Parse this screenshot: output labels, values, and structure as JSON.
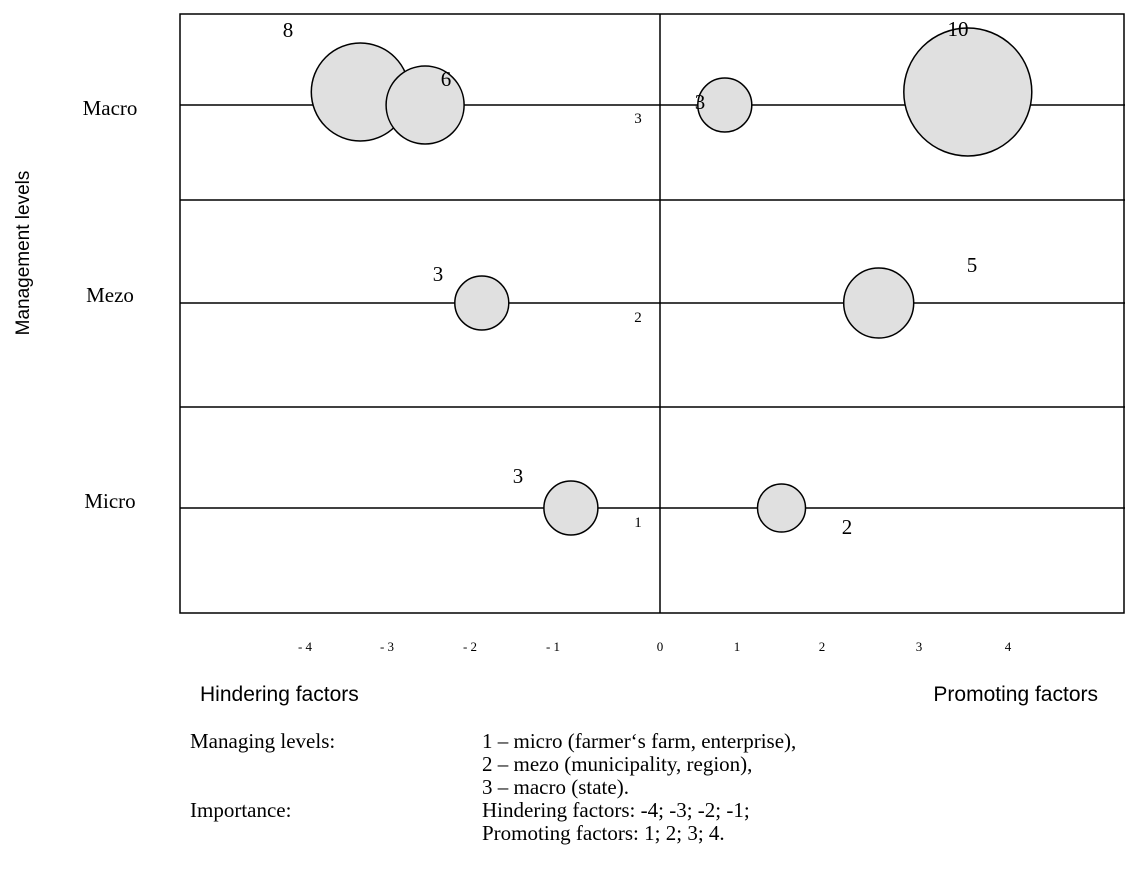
{
  "chart_data": {
    "type": "bubble",
    "ylabel": "Management levels",
    "rows": [
      {
        "level": "Macro",
        "marker": "3"
      },
      {
        "level": "Mezo",
        "marker": "2"
      },
      {
        "level": "Micro",
        "marker": "1"
      }
    ],
    "x_ticks": [
      "- 4",
      "- 3",
      "- 2",
      "- 1",
      "0",
      "1",
      "2",
      "3",
      "4"
    ],
    "xlim": [
      -5.1,
      5.2
    ],
    "left_caption": "Hindering factors",
    "right_caption": "Promoting factors",
    "points": [
      {
        "level": "Macro",
        "x": -3.7,
        "size": 8,
        "label": "8"
      },
      {
        "level": "Macro",
        "x": -2.9,
        "size": 6,
        "label": "6"
      },
      {
        "level": "Macro",
        "x": 0.8,
        "size": 3,
        "label": "3"
      },
      {
        "level": "Macro",
        "x": 3.8,
        "size": 10,
        "label": "10"
      },
      {
        "level": "Mezo",
        "x": -2.2,
        "size": 3,
        "label": "3"
      },
      {
        "level": "Mezo",
        "x": 2.7,
        "size": 5,
        "label": "5"
      },
      {
        "level": "Micro",
        "x": -1.1,
        "size": 3,
        "label": "3"
      },
      {
        "level": "Micro",
        "x": 1.5,
        "size": 2,
        "label": "2"
      }
    ],
    "bubble_fill": "#e0e0e0",
    "grid": true
  },
  "legend": [
    {
      "key": "Managing levels:",
      "value": "1 – micro (farmer‘s farm, enterprise),"
    },
    {
      "key": "",
      "value": "2 – mezo (municipality, region),"
    },
    {
      "key": "",
      "value": "3 – macro (state)."
    },
    {
      "key": "Importance:",
      "value": "Hindering factors: -4; -3; -2; -1;"
    },
    {
      "key": "",
      "value": "Promoting factors: 1; 2; 3; 4."
    }
  ]
}
